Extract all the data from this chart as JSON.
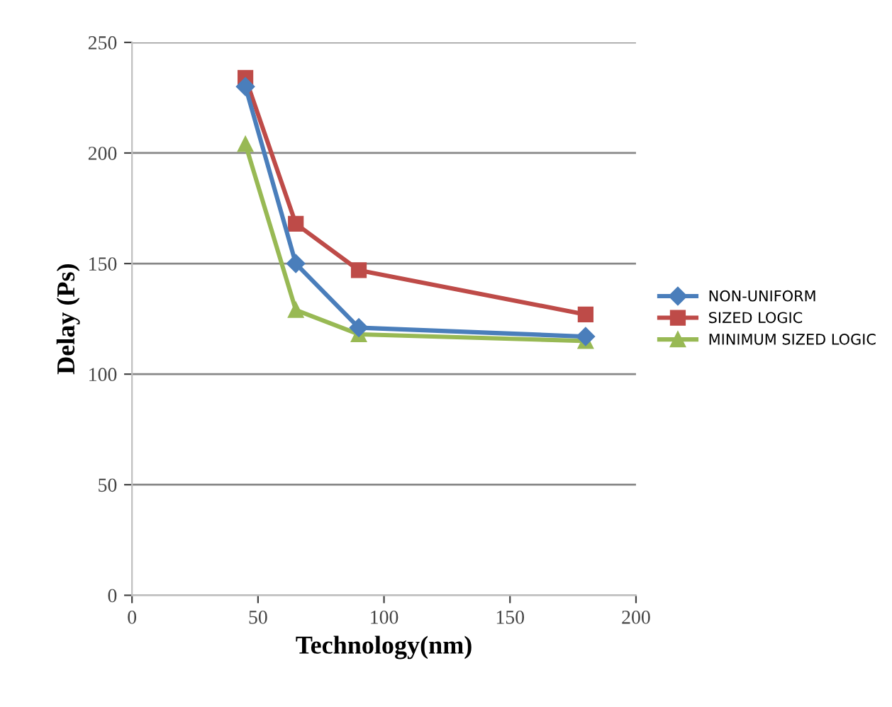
{
  "chart_data": {
    "type": "line",
    "xlabel": "Technology(nm)",
    "ylabel": "Delay (Ps)",
    "xlim": [
      0,
      200
    ],
    "xticks": [
      0,
      50,
      100,
      150,
      200
    ],
    "ylim": [
      0,
      250
    ],
    "yticks": [
      0,
      50,
      100,
      150,
      200,
      250
    ],
    "grid": "y",
    "legend": "right",
    "series": [
      {
        "name": "NON-UNIFORM",
        "color": "#4a7ebb",
        "marker": "diamond",
        "x": [
          45,
          65,
          90,
          180
        ],
        "values": [
          230,
          150,
          121,
          117
        ]
      },
      {
        "name": "SIZED LOGIC",
        "color": "#be4b48",
        "marker": "square",
        "x": [
          45,
          65,
          90,
          180
        ],
        "values": [
          234,
          168,
          147,
          127
        ]
      },
      {
        "name": "MINIMUM SIZED LOGIC",
        "color": "#98b954",
        "marker": "triangle",
        "x": [
          45,
          65,
          90,
          180
        ],
        "values": [
          204,
          129,
          118,
          115
        ]
      }
    ]
  }
}
